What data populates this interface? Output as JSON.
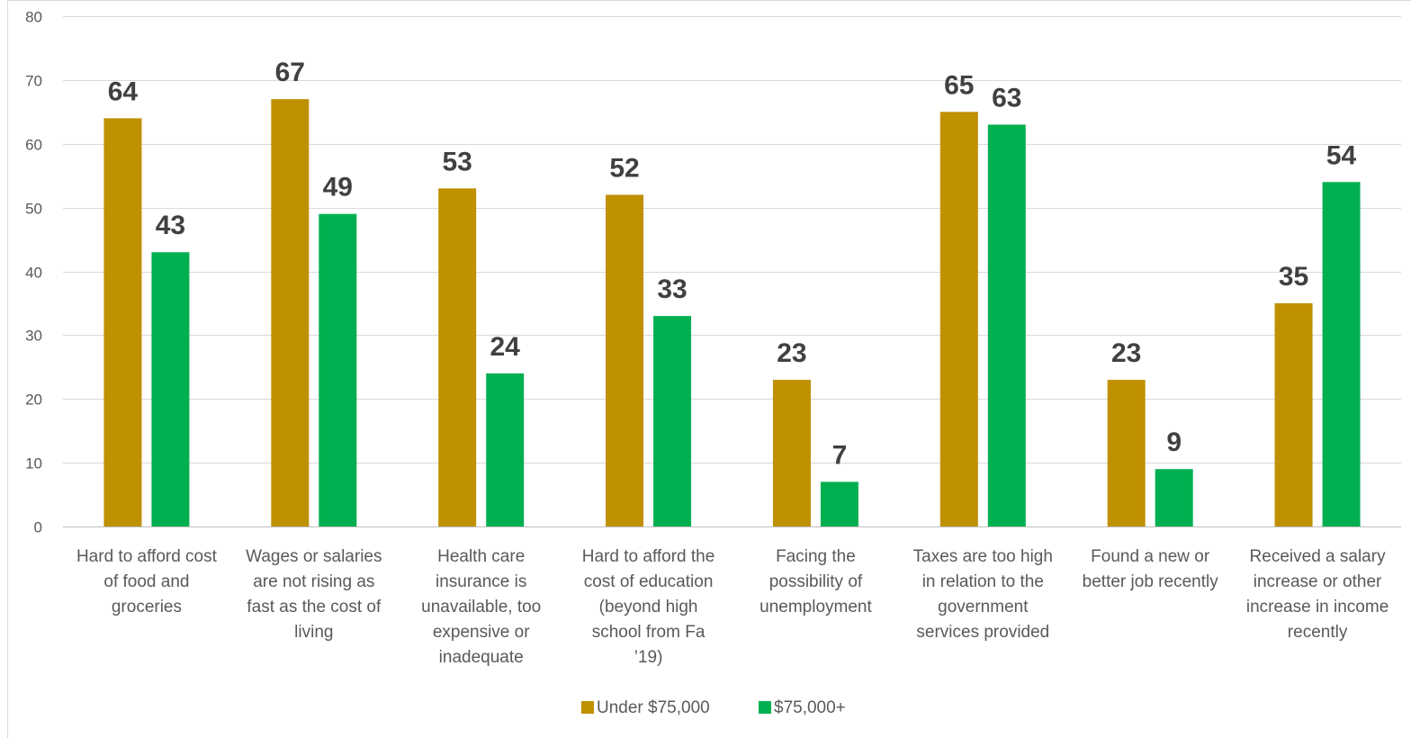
{
  "chart_data": {
    "type": "bar",
    "title": "",
    "xlabel": "",
    "ylabel": "",
    "ylim": [
      0,
      80
    ],
    "yticks": [
      0,
      10,
      20,
      30,
      40,
      50,
      60,
      70,
      80
    ],
    "grid": true,
    "legend_position": "bottom",
    "categories": [
      [
        "Hard to afford cost",
        "of food and",
        "groceries"
      ],
      [
        "Wages or salaries",
        "are not rising as",
        "fast as the cost of",
        "living"
      ],
      [
        "Health care",
        "insurance is",
        "unavailable, too",
        "expensive or",
        "inadequate"
      ],
      [
        "Hard to afford the",
        "cost of education",
        "(beyond high",
        "school from Fa",
        "’19)"
      ],
      [
        "Facing the",
        "possibility of",
        "unemployment"
      ],
      [
        "Taxes are too high",
        "in relation to the",
        "government",
        "services provided"
      ],
      [
        "Found a new or",
        "better job recently"
      ],
      [
        "Received a salary",
        "increase or other",
        "increase in income",
        "recently"
      ]
    ],
    "series": [
      {
        "name": "Under $75,000",
        "color": "#BF9000",
        "values": [
          64,
          67,
          53,
          52,
          23,
          65,
          23,
          35
        ]
      },
      {
        "name": "$75,000+",
        "color": "#00B050",
        "values": [
          43,
          49,
          24,
          33,
          7,
          63,
          9,
          54
        ]
      }
    ],
    "gridline_color": "#D9D9D9",
    "axis_color": "#BFBFBF"
  }
}
